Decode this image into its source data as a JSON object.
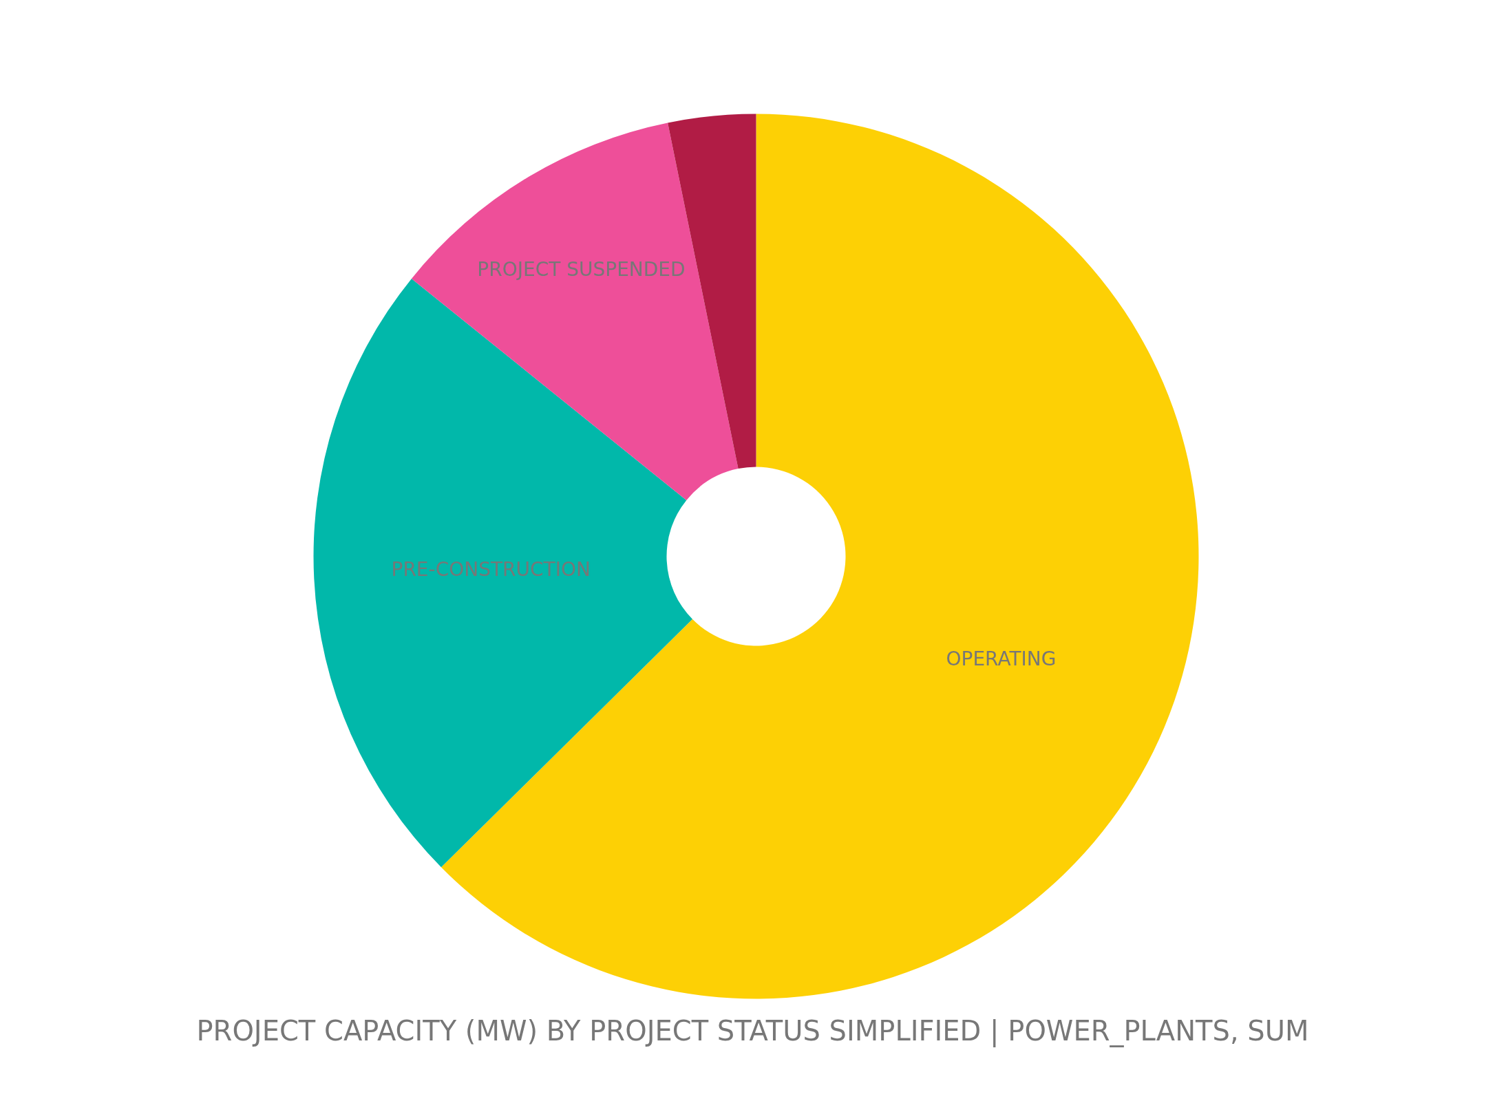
{
  "chart_data": {
    "type": "donut",
    "title": "PROJECT CAPACITY (MW) BY PROJECT STATUS SIMPLIFIED | POWER_PLANTS, SUM",
    "categories": [
      "OPERATING",
      "PRE-CONSTRUCTION",
      "PROJECT SUSPENDED",
      null
    ],
    "values": [
      62.6,
      23.2,
      11.0,
      3.2
    ],
    "colors": [
      "#fdd005",
      "#01b8aa",
      "#ee4f99",
      "#b11c45"
    ]
  }
}
